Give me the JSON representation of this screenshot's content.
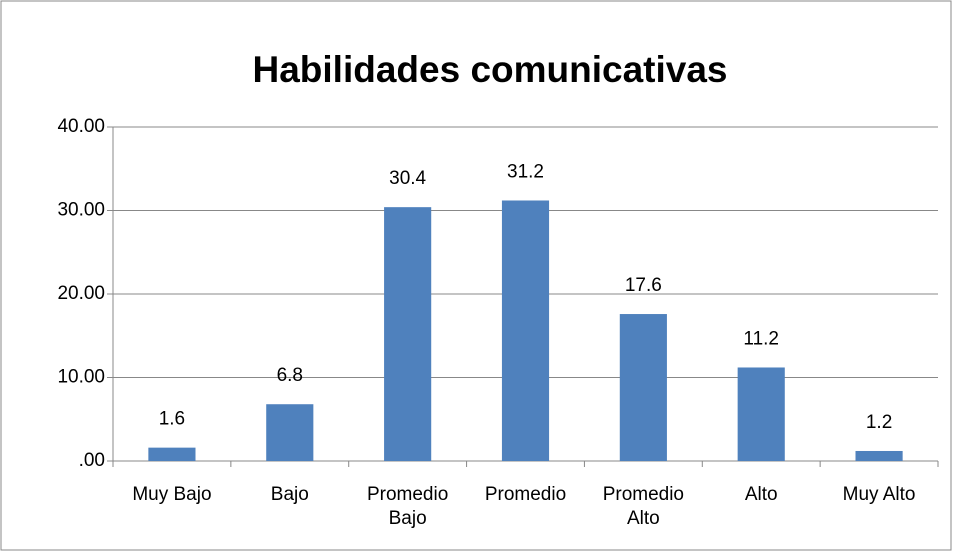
{
  "chart_data": {
    "type": "bar",
    "title": "Habilidades comunicativas",
    "categories": [
      "Muy Bajo",
      "Bajo",
      "Promedio\nBajo",
      "Promedio",
      "Promedio\nAlto",
      "Alto",
      "Muy Alto"
    ],
    "values": [
      1.6,
      6.8,
      30.4,
      31.2,
      17.6,
      11.2,
      1.2
    ],
    "color": "#4f81bd",
    "ylim": [
      0,
      40
    ],
    "yticks": [
      {
        "value": 0,
        "label": ".00"
      },
      {
        "value": 10,
        "label": "10.00"
      },
      {
        "value": 20,
        "label": "20.00"
      },
      {
        "value": 30,
        "label": "30.00"
      },
      {
        "value": 40,
        "label": "40.00"
      }
    ],
    "grid": true
  }
}
